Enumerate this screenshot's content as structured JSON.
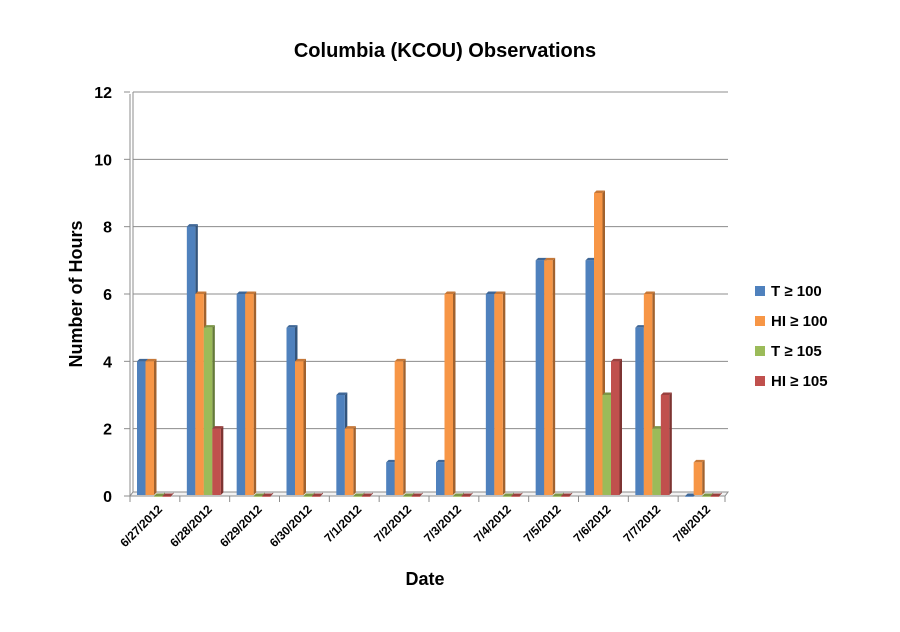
{
  "chart_data": {
    "type": "bar",
    "title": "Columbia (KCOU) Observations",
    "xlabel": "Date",
    "ylabel": "Number of Hours",
    "ylim": [
      0,
      12
    ],
    "yticks": [
      0,
      2,
      4,
      6,
      8,
      10,
      12
    ],
    "grid": true,
    "legend_position": "right",
    "categories": [
      "6/27/2012",
      "6/28/2012",
      "6/29/2012",
      "6/30/2012",
      "7/1/2012",
      "7/2/2012",
      "7/3/2012",
      "7/4/2012",
      "7/5/2012",
      "7/6/2012",
      "7/7/2012",
      "7/8/2012"
    ],
    "series": [
      {
        "name": "T ≥ 100",
        "color": "#4F81BD",
        "values": [
          4,
          8,
          6,
          5,
          3,
          1,
          1,
          6,
          7,
          7,
          5,
          0
        ]
      },
      {
        "name": "HI ≥ 100",
        "color": "#F79646",
        "values": [
          4,
          6,
          6,
          4,
          2,
          4,
          6,
          6,
          7,
          9,
          6,
          1
        ]
      },
      {
        "name": "T ≥ 105",
        "color": "#9BBB59",
        "values": [
          0,
          5,
          0,
          0,
          0,
          0,
          0,
          0,
          0,
          3,
          2,
          0
        ]
      },
      {
        "name": "HI ≥ 105",
        "color": "#C0504D",
        "values": [
          0,
          2,
          0,
          0,
          0,
          0,
          0,
          0,
          0,
          4,
          3,
          0
        ]
      }
    ]
  }
}
